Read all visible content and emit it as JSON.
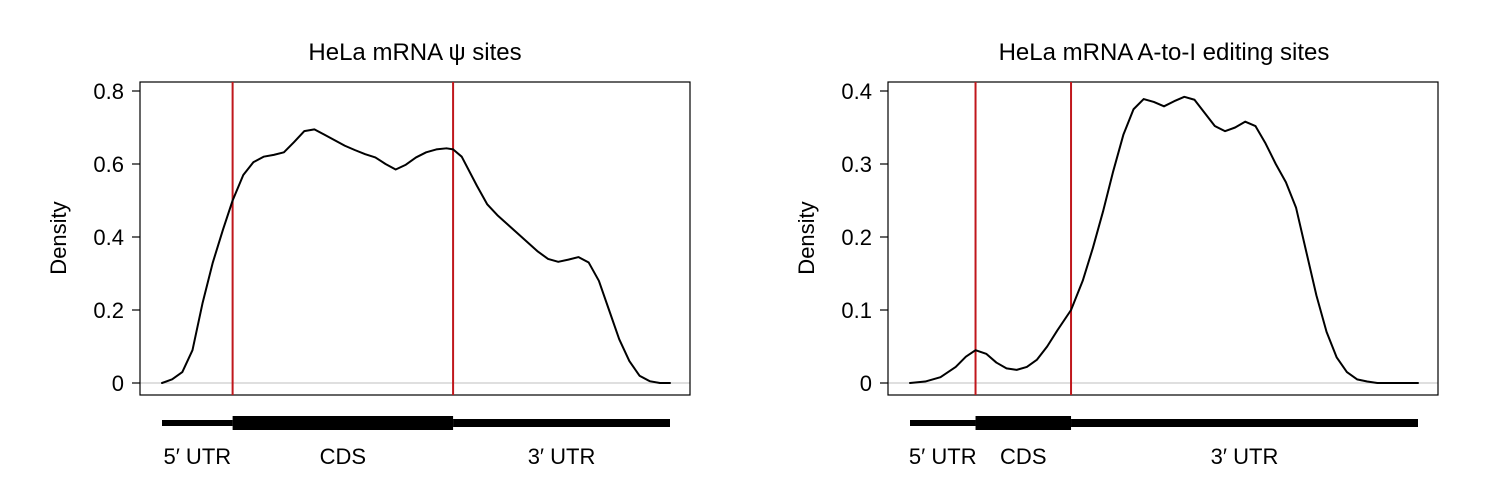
{
  "chart_data": [
    {
      "type": "line",
      "title": "HeLa mRNA ψ sites",
      "xlabel": "",
      "ylabel": "Density",
      "ylim": [
        0,
        0.82
      ],
      "yticks": [
        0,
        0.2,
        0.4,
        0.6,
        0.8
      ],
      "ytick_labels": [
        "0",
        "0.2",
        "0.4",
        "0.6",
        "0.8"
      ],
      "xlim": [
        0,
        1
      ],
      "grid": false,
      "boundaries": [
        0.139,
        0.573
      ],
      "boundary_color": "#c0171c",
      "line_color": "#000000",
      "regions": [
        {
          "name": "5′ UTR",
          "start": 0.0,
          "end": 0.139
        },
        {
          "name": "CDS",
          "start": 0.139,
          "end": 0.573
        },
        {
          "name": "3′ UTR",
          "start": 0.573,
          "end": 1.0
        }
      ],
      "series": [
        {
          "x": [
            0.0,
            0.02,
            0.04,
            0.06,
            0.08,
            0.1,
            0.12,
            0.139,
            0.16,
            0.18,
            0.2,
            0.22,
            0.24,
            0.26,
            0.28,
            0.3,
            0.32,
            0.34,
            0.36,
            0.38,
            0.4,
            0.42,
            0.44,
            0.46,
            0.48,
            0.5,
            0.52,
            0.54,
            0.56,
            0.573,
            0.59,
            0.62,
            0.64,
            0.66,
            0.68,
            0.7,
            0.72,
            0.74,
            0.76,
            0.78,
            0.8,
            0.82,
            0.84,
            0.86,
            0.88,
            0.9,
            0.92,
            0.94,
            0.96,
            0.98,
            1.0
          ],
          "values": [
            0.0,
            0.01,
            0.03,
            0.09,
            0.22,
            0.33,
            0.42,
            0.5,
            0.57,
            0.605,
            0.62,
            0.625,
            0.632,
            0.66,
            0.69,
            0.695,
            0.68,
            0.665,
            0.65,
            0.638,
            0.627,
            0.618,
            0.6,
            0.585,
            0.598,
            0.618,
            0.632,
            0.64,
            0.643,
            0.64,
            0.62,
            0.54,
            0.49,
            0.46,
            0.435,
            0.41,
            0.385,
            0.36,
            0.34,
            0.332,
            0.338,
            0.345,
            0.33,
            0.28,
            0.2,
            0.12,
            0.06,
            0.02,
            0.005,
            0.0,
            0.0
          ]
        }
      ]
    },
    {
      "type": "line",
      "title": "HeLa mRNA A-to-I editing sites",
      "xlabel": "",
      "ylabel": "Density",
      "ylim": [
        0,
        0.41
      ],
      "yticks": [
        0,
        0.1,
        0.2,
        0.3,
        0.4
      ],
      "ytick_labels": [
        "0",
        "0.1",
        "0.2",
        "0.3",
        "0.4"
      ],
      "xlim": [
        0,
        1
      ],
      "grid": false,
      "boundaries": [
        0.129,
        0.317
      ],
      "boundary_color": "#c0171c",
      "line_color": "#000000",
      "regions": [
        {
          "name": "5′ UTR",
          "start": 0.0,
          "end": 0.129
        },
        {
          "name": "CDS",
          "start": 0.129,
          "end": 0.317
        },
        {
          "name": "3′ UTR",
          "start": 0.317,
          "end": 1.0
        }
      ],
      "series": [
        {
          "x": [
            0.0,
            0.03,
            0.06,
            0.09,
            0.11,
            0.129,
            0.15,
            0.17,
            0.19,
            0.21,
            0.23,
            0.25,
            0.27,
            0.29,
            0.317,
            0.34,
            0.36,
            0.38,
            0.4,
            0.42,
            0.44,
            0.46,
            0.48,
            0.5,
            0.52,
            0.54,
            0.56,
            0.58,
            0.6,
            0.62,
            0.64,
            0.66,
            0.68,
            0.7,
            0.72,
            0.74,
            0.76,
            0.78,
            0.8,
            0.82,
            0.84,
            0.86,
            0.88,
            0.9,
            0.92,
            0.94,
            0.96,
            0.98,
            1.0
          ],
          "values": [
            0.0,
            0.002,
            0.008,
            0.022,
            0.036,
            0.045,
            0.04,
            0.028,
            0.02,
            0.018,
            0.022,
            0.032,
            0.05,
            0.072,
            0.1,
            0.14,
            0.185,
            0.235,
            0.29,
            0.34,
            0.375,
            0.389,
            0.385,
            0.379,
            0.386,
            0.392,
            0.388,
            0.37,
            0.352,
            0.345,
            0.35,
            0.358,
            0.352,
            0.328,
            0.3,
            0.275,
            0.24,
            0.18,
            0.12,
            0.07,
            0.035,
            0.015,
            0.005,
            0.002,
            0.0,
            0.0,
            0.0,
            0.0,
            0.0
          ]
        }
      ]
    }
  ]
}
